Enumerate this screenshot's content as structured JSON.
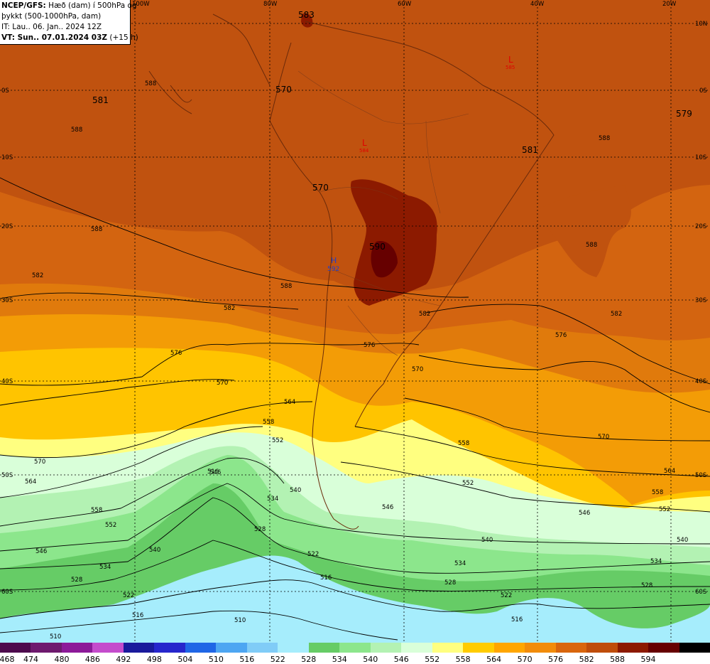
{
  "header": {
    "line1_bold": "NCEP/GFS:",
    "line1_rest": " Hæð (dam) í 500hPa og",
    "line2": "þykkt (500-1000hPa, dam)",
    "line3": "IT: Lau.. 06. Jan.. 2024 12Z",
    "line4_bold": "VT: Sun.. 07.01.2024 03Z",
    "line4_rest": " (+15 h)"
  },
  "lon_labels": [
    "100W",
    "80W",
    "60W",
    "40W",
    "20W"
  ],
  "lat_labels": [
    "10N",
    "0S",
    "10S",
    "20S",
    "30S",
    "40S",
    "50S",
    "60S"
  ],
  "height_labels": {
    "h583": "583",
    "h581a": "581",
    "h570a": "570",
    "h581b": "581",
    "h579": "579",
    "h570b": "570",
    "h590": "590",
    "h592": "592",
    "hL1": "L",
    "hL1v": "584",
    "hL2": "L",
    "hL2v": "585",
    "hH": "H"
  },
  "contour_labels": {
    "c588a": "588",
    "c588b": "588",
    "c588c": "588",
    "c588d": "588",
    "c588e": "588",
    "c588f": "588",
    "c582a": "582",
    "c582b": "582",
    "c582c": "582",
    "c582d": "582",
    "c576a": "576",
    "c576b": "576",
    "c576c": "576",
    "c570a": "570",
    "c570b": "570",
    "c570c": "570",
    "c570d": "570",
    "c564a": "564",
    "c564b": "564",
    "c564c": "564",
    "c558a": "558",
    "c558b": "558",
    "c558c": "558",
    "c558d": "558",
    "c552a": "552",
    "c552b": "552",
    "c552c": "552",
    "c552d": "552",
    "c546a": "546",
    "c546b": "546",
    "c546c": "546",
    "c546d": "546",
    "c540a": "540",
    "c540b": "540",
    "c540c": "540",
    "c540d": "540",
    "c534a": "534",
    "c534b": "534",
    "c534c": "534",
    "c534d": "534",
    "c528a": "528",
    "c528b": "528",
    "c528c": "528",
    "c528d": "528",
    "c522a": "522",
    "c522b": "522",
    "c522c": "522",
    "c516a": "516",
    "c516b": "516",
    "c516c": "516",
    "c516d": "516",
    "c510a": "510",
    "c510b": "510"
  },
  "legend": {
    "values": [
      "468",
      "474",
      "480",
      "486",
      "492",
      "498",
      "504",
      "510",
      "516",
      "522",
      "528",
      "534",
      "540",
      "546",
      "552",
      "558",
      "564",
      "570",
      "576",
      "582",
      "588",
      "594"
    ],
    "colors": [
      "#4d0a4d",
      "#6e1a6e",
      "#8c1a99",
      "#c44ccc",
      "#1a1a9c",
      "#2626cc",
      "#1f66e6",
      "#4da6f2",
      "#80ccf7",
      "#a6edfc",
      "#66cc66",
      "#8ce68c",
      "#b3f2b3",
      "#d9ffd9",
      "#ffff80",
      "#ffcc00",
      "#ffa600",
      "#f28c0a",
      "#d9660d",
      "#bf4d0a",
      "#8c1a00",
      "#660000",
      "#000000"
    ]
  }
}
